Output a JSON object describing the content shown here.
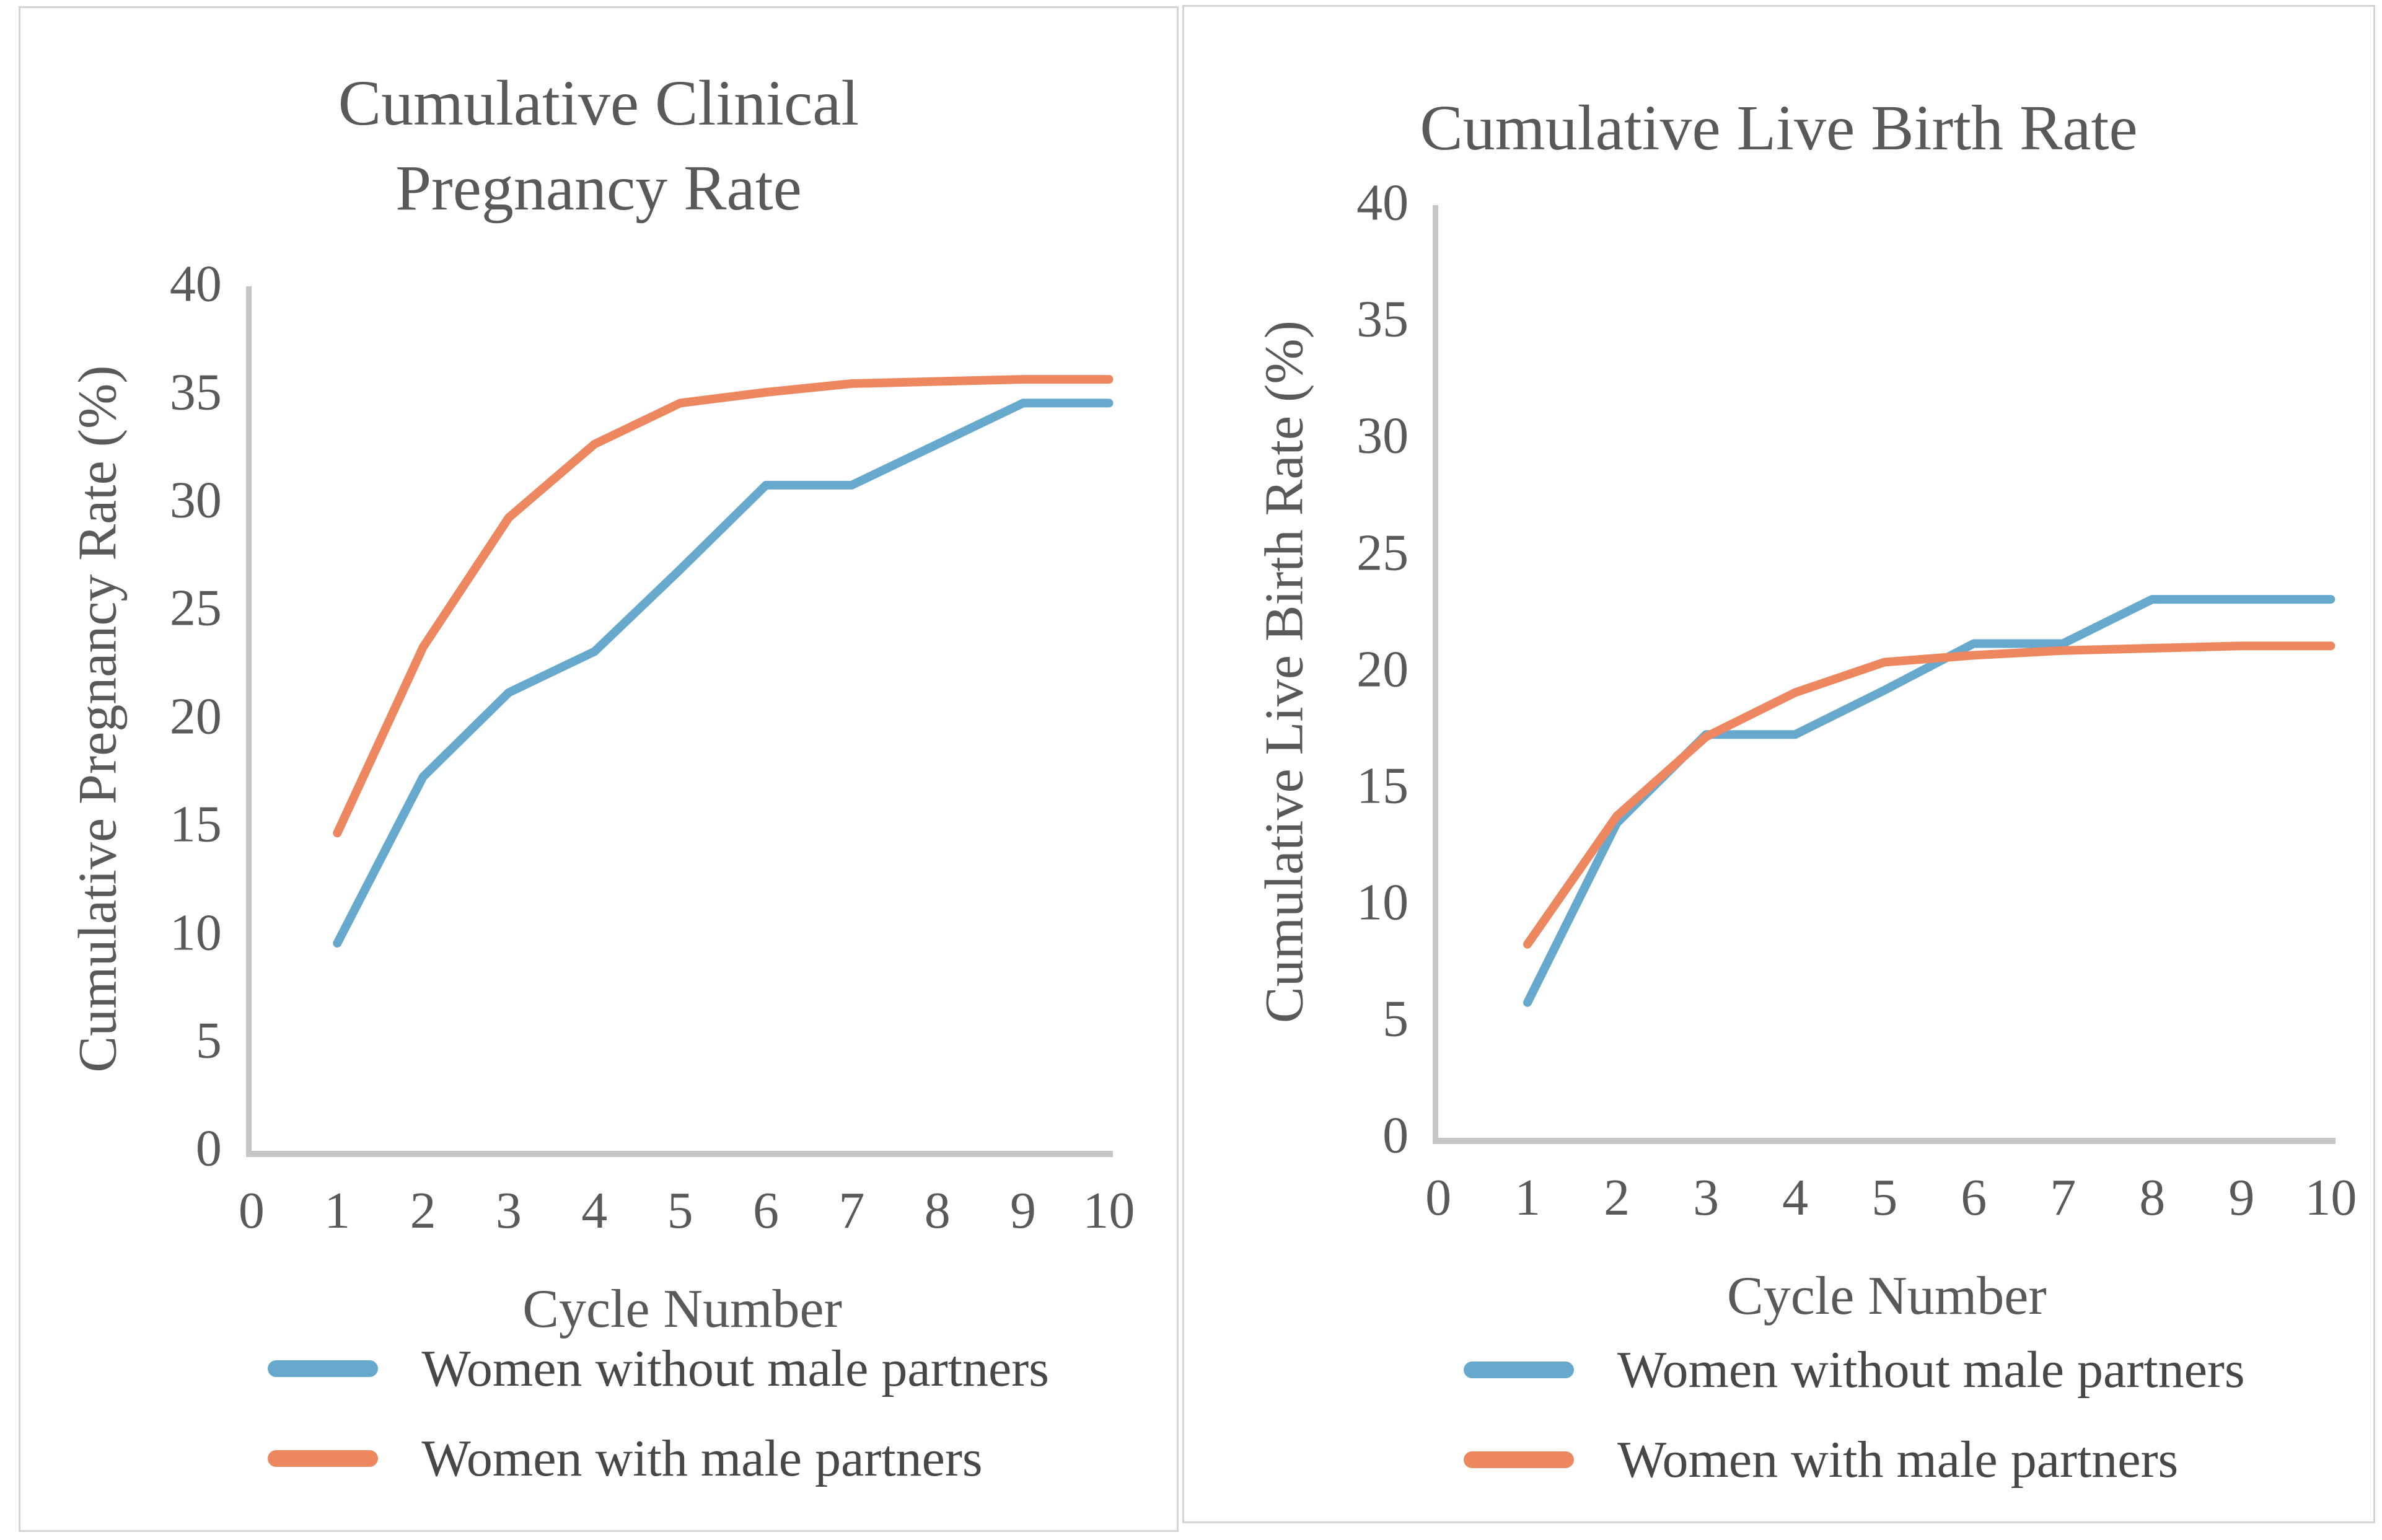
{
  "page": {
    "background": "#FFFFFF"
  },
  "colors": {
    "series_without_male_partners": "#67A8CD",
    "series_with_male_partners": "#ED8760",
    "title_text": "#595959",
    "tick_text": "#595959",
    "legend_text": "#474747",
    "axis_line": "#C6C6C6",
    "panel_border": "#D4D4D4"
  },
  "chart_data": [
    {
      "type": "line",
      "title_lines": [
        "Cumulative Clinical",
        "Pregnancy Rate"
      ],
      "xlabel": "Cycle Number",
      "ylabel": "Cumulative Pregnancy Rate (%)",
      "xlim": [
        0,
        10
      ],
      "ylim": [
        0,
        40
      ],
      "grid": false,
      "legend_position": "bottom-left",
      "x_ticks": [
        0,
        1,
        2,
        3,
        4,
        5,
        6,
        7,
        8,
        9,
        10
      ],
      "y_ticks": [
        0,
        5,
        10,
        15,
        20,
        25,
        30,
        35,
        40
      ],
      "x": [
        1,
        2,
        3,
        4,
        5,
        6,
        7,
        8,
        9,
        10
      ],
      "series": [
        {
          "name": "Women without male partners",
          "color": "#67A8CD",
          "values": [
            9.6,
            17.3,
            21.2,
            23.1,
            26.9,
            30.8,
            30.8,
            32.7,
            34.6,
            34.6
          ]
        },
        {
          "name": "Women with male partners",
          "color": "#ED8760",
          "values": [
            14.7,
            23.3,
            29.3,
            32.7,
            34.6,
            35.1,
            35.5,
            35.6,
            35.7,
            35.7
          ]
        }
      ]
    },
    {
      "type": "line",
      "title_lines": [
        "Cumulative Live Birth Rate"
      ],
      "xlabel": "Cycle Number",
      "ylabel": "Cumulative Live Birth Rate (%)",
      "xlim": [
        0,
        10
      ],
      "ylim": [
        0,
        40
      ],
      "grid": false,
      "legend_position": "bottom-left",
      "x_ticks": [
        0,
        1,
        2,
        3,
        4,
        5,
        6,
        7,
        8,
        9,
        10
      ],
      "y_ticks": [
        0,
        5,
        10,
        15,
        20,
        25,
        30,
        35,
        40
      ],
      "x": [
        1,
        2,
        3,
        4,
        5,
        6,
        7,
        8,
        9,
        10
      ],
      "series": [
        {
          "name": "Women without male partners",
          "color": "#67A8CD",
          "values": [
            5.8,
            13.5,
            17.3,
            17.3,
            19.2,
            21.2,
            21.2,
            23.1,
            23.1,
            23.1
          ]
        },
        {
          "name": "Women with male partners",
          "color": "#ED8760",
          "values": [
            8.3,
            13.8,
            17.2,
            19.1,
            20.4,
            20.7,
            20.9,
            21.0,
            21.1,
            21.1
          ]
        }
      ]
    }
  ]
}
